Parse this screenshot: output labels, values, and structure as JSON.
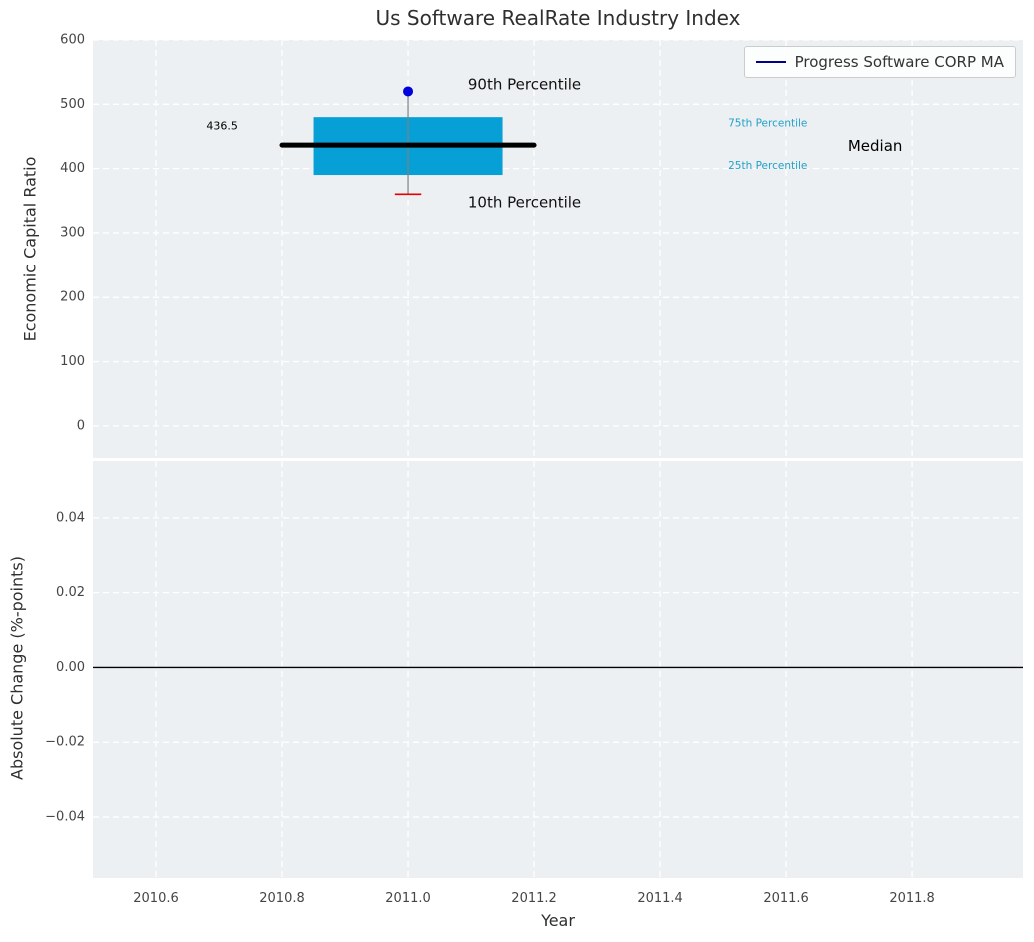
{
  "chart_data": {
    "type": "boxplot",
    "title": "Us Software RealRate Industry Index",
    "xlabel": "Year",
    "xlim": [
      2010.5,
      2011.976
    ],
    "xticks": [
      {
        "v": 2010.6,
        "label": "2010.6"
      },
      {
        "v": 2010.8,
        "label": "2010.8"
      },
      {
        "v": 2011.0,
        "label": "2011.0"
      },
      {
        "v": 2011.2,
        "label": "2011.2"
      },
      {
        "v": 2011.4,
        "label": "2011.4"
      },
      {
        "v": 2011.6,
        "label": "2011.6"
      },
      {
        "v": 2011.8,
        "label": "2011.8"
      }
    ],
    "panel_bg": "#ecf0f2",
    "grid_color": "#ffffff",
    "tick_color": "#454545",
    "legend": {
      "label": "Progress Software CORP MA",
      "color": "#00008b"
    },
    "top_panel": {
      "ylabel": "Economic Capital Ratio",
      "ylim": [
        -50,
        600
      ],
      "yticks": [
        {
          "v": 0,
          "label": "0"
        },
        {
          "v": 100,
          "label": "100"
        },
        {
          "v": 200,
          "label": "200"
        },
        {
          "v": 300,
          "label": "300"
        },
        {
          "v": 400,
          "label": "400"
        },
        {
          "v": 500,
          "label": "500"
        },
        {
          "v": 600,
          "label": "600"
        }
      ],
      "box": {
        "x": 2011.0,
        "box_left": 2010.85,
        "box_right": 2011.15,
        "q25": 390,
        "q75": 480,
        "median": 436.5,
        "p10": 360,
        "p90": 520,
        "median_line_left": 2010.8,
        "median_line_right": 2011.2,
        "cap_halfwidth": 0.021,
        "box_color": "#069fd6",
        "median_color": "#000000",
        "whisker_color": "#808080",
        "p10_color": "#e60000",
        "p90_color": "#0000dd"
      },
      "annotations": [
        {
          "text": "436.5",
          "x": 2010.705,
          "y": 466,
          "color": "#000000",
          "size": 11,
          "anchor": "middle"
        },
        {
          "text": "90th Percentile",
          "x": 2011.095,
          "y": 531,
          "color": "#111111",
          "size": 15,
          "anchor": "start"
        },
        {
          "text": "10th Percentile",
          "x": 2011.095,
          "y": 347,
          "color": "#111111",
          "size": 15,
          "anchor": "start"
        },
        {
          "text": "75th Percentile",
          "x": 2011.508,
          "y": 470,
          "color": "#22a0c8",
          "size": 10.5,
          "anchor": "start"
        },
        {
          "text": "25th Percentile",
          "x": 2011.508,
          "y": 404,
          "color": "#22a0c8",
          "size": 10.5,
          "anchor": "start"
        },
        {
          "text": "Median",
          "x": 2011.698,
          "y": 435,
          "color": "#000000",
          "size": 15,
          "anchor": "start"
        }
      ]
    },
    "bottom_panel": {
      "ylabel": "Absolute Change (%-points)",
      "ylim": [
        -0.0563,
        0.0552
      ],
      "yticks": [
        {
          "v": 0.04,
          "label": "0.04"
        },
        {
          "v": 0.02,
          "label": "0.02"
        },
        {
          "v": 0.0,
          "label": "0.00"
        },
        {
          "v": -0.02,
          "label": "−0.02"
        },
        {
          "v": -0.04,
          "label": "−0.04"
        }
      ],
      "zero_line": {
        "y": 0,
        "color": "#000000"
      }
    }
  }
}
